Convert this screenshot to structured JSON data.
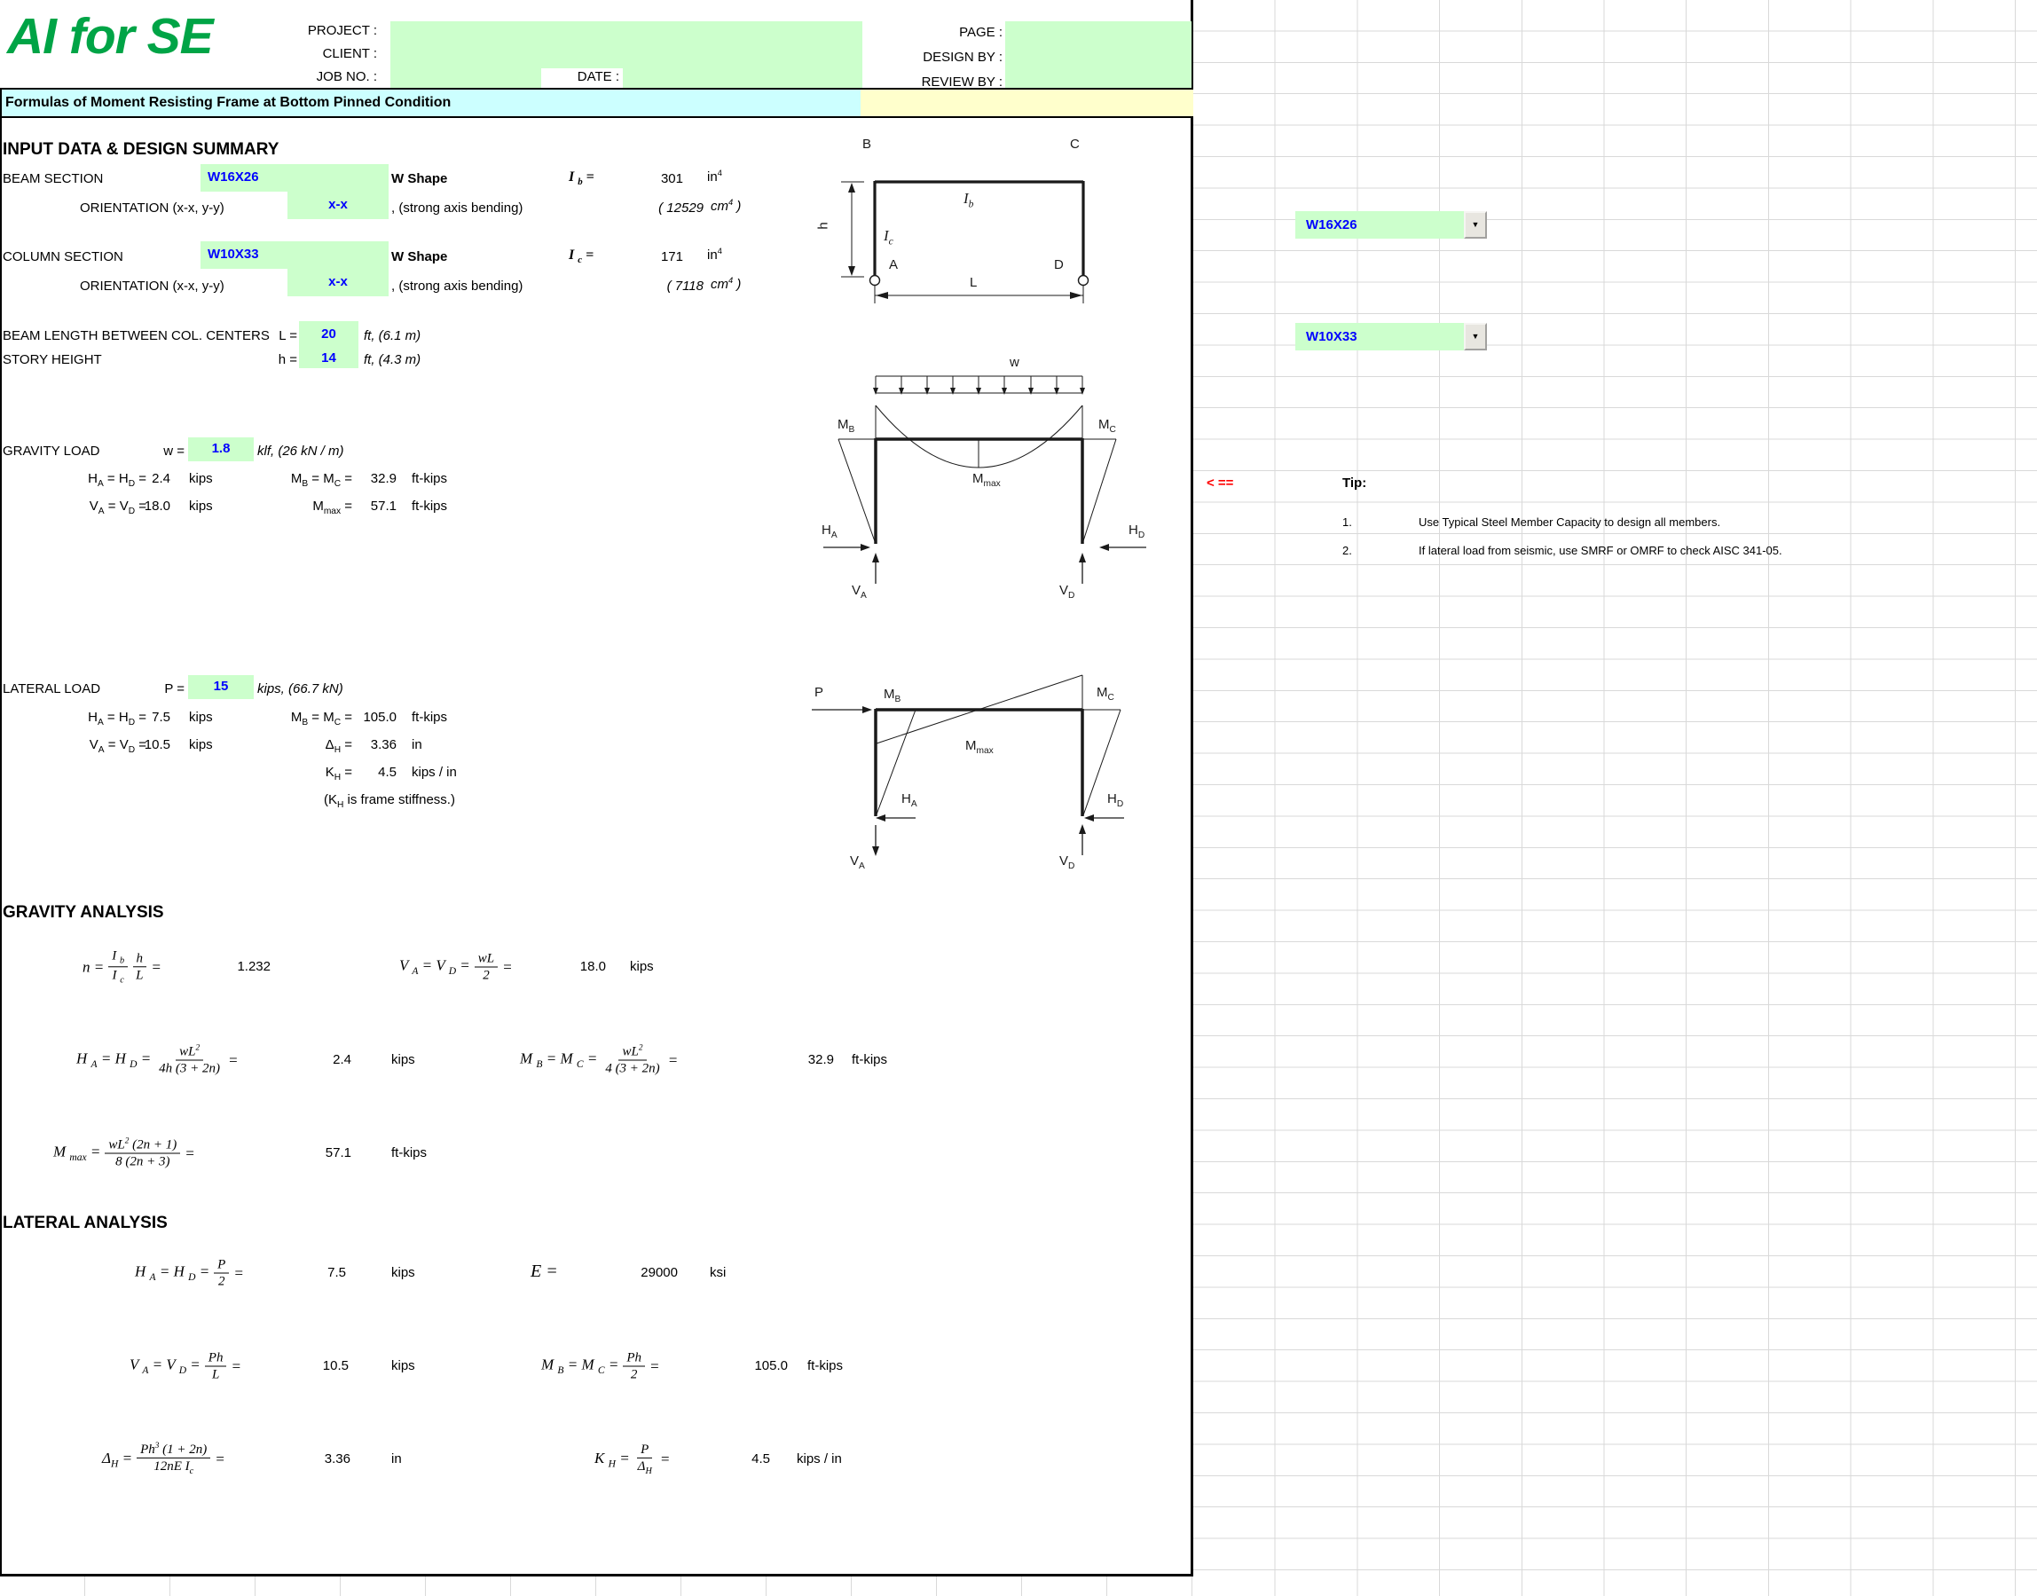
{
  "colors": {
    "brand_green": "#00A446",
    "cell_green": "#CCFFCC",
    "title_cyan": "#CCFFFF",
    "title_yellow": "#FFFFCC",
    "input_blue": "#0000FF",
    "pointer_red": "#FF0000"
  },
  "header": {
    "logo": "AI for SE",
    "left_labels": [
      "PROJECT :",
      "CLIENT :",
      "JOB NO. :"
    ],
    "date_label": "DATE :",
    "right_labels": [
      "PAGE :",
      "DESIGN BY :",
      "REVIEW BY :"
    ],
    "title": "Formulas of Moment Resisting Frame at Bottom Pinned Condition"
  },
  "input": {
    "heading": "INPUT DATA & DESIGN SUMMARY",
    "beam_label": "BEAM SECTION",
    "beam_value": "W16X26",
    "shape": "W Shape",
    "Ib_label": [
      [
        "t",
        "I "
      ],
      [
        "s",
        "b"
      ],
      [
        "t",
        "  ="
      ]
    ],
    "Ib_value": "301",
    "in4": [
      [
        "t",
        "in"
      ],
      [
        "p",
        "4"
      ]
    ],
    "orientation_label": "ORIENTATION (x-x, y-y)",
    "orientation_value": "x-x",
    "orientation_note": ", (strong axis bending)",
    "beam_metric": "( 12529",
    "cm4": [
      [
        "t",
        "cm"
      ],
      [
        "p",
        "4"
      ],
      [
        "t",
        " )"
      ]
    ],
    "column_label": "COLUMN SECTION",
    "column_value": "W10X33",
    "Ic_label": [
      [
        "t",
        "I "
      ],
      [
        "s",
        "c"
      ],
      [
        "t",
        "  ="
      ]
    ],
    "Ic_value": "171",
    "column_metric": "( 7118",
    "length_label": "BEAM LENGTH BETWEEN COL. CENTERS",
    "length_sym": "L =",
    "length_value": "20",
    "length_unit": "ft, (6.1 m)",
    "height_label": "STORY HEIGHT",
    "height_sym": "h =",
    "height_value": "14",
    "height_unit": "ft, (4.3 m)"
  },
  "gravity": {
    "label": "GRAVITY LOAD",
    "sym": "w =",
    "value": "1.8",
    "unit": "klf, (26 kN / m)",
    "h_label": [
      [
        "t",
        "H"
      ],
      [
        "s",
        "A"
      ],
      [
        "t",
        " = H"
      ],
      [
        "s",
        "D"
      ],
      [
        "t",
        " ="
      ]
    ],
    "h_value": "2.4",
    "h_unit": "kips",
    "mb_label": [
      [
        "t",
        "M"
      ],
      [
        "s",
        "B"
      ],
      [
        "t",
        " = M"
      ],
      [
        "s",
        "C"
      ],
      [
        "t",
        " ="
      ]
    ],
    "mb_value": "32.9",
    "mb_unit": "ft-kips",
    "v_label": [
      [
        "t",
        "V"
      ],
      [
        "s",
        "A"
      ],
      [
        "t",
        " = V"
      ],
      [
        "s",
        "D"
      ],
      [
        "t",
        " ="
      ]
    ],
    "v_value": "18.0",
    "v_unit": "kips",
    "mmax_label": [
      [
        "t",
        "M"
      ],
      [
        "s",
        "max"
      ],
      [
        "t",
        " ="
      ]
    ],
    "mmax_value": "57.1",
    "mmax_unit": "ft-kips"
  },
  "lateral": {
    "label": "LATERAL LOAD",
    "sym": "P =",
    "value": "15",
    "unit": "kips, (66.7 kN)",
    "h_label": [
      [
        "t",
        "H"
      ],
      [
        "s",
        "A"
      ],
      [
        "t",
        " = H"
      ],
      [
        "s",
        "D"
      ],
      [
        "t",
        " ="
      ]
    ],
    "h_value": "7.5",
    "h_unit": "kips",
    "mb_label": [
      [
        "t",
        "M"
      ],
      [
        "s",
        "B"
      ],
      [
        "t",
        " = M"
      ],
      [
        "s",
        "C"
      ],
      [
        "t",
        " ="
      ]
    ],
    "mb_value": "105.0",
    "mb_unit": "ft-kips",
    "v_label": [
      [
        "t",
        "V"
      ],
      [
        "s",
        "A"
      ],
      [
        "t",
        " = V"
      ],
      [
        "s",
        "D"
      ],
      [
        "t",
        " ="
      ]
    ],
    "v_value": "10.5",
    "v_unit": "kips",
    "dh_label": [
      [
        "t",
        "Δ"
      ],
      [
        "s",
        "H"
      ],
      [
        "t",
        " ="
      ]
    ],
    "dh_value": "3.36",
    "dh_unit": "in",
    "kh_label": [
      [
        "t",
        "K"
      ],
      [
        "s",
        "H"
      ],
      [
        "t",
        " ="
      ]
    ],
    "kh_value": "4.5",
    "kh_unit": "kips / in",
    "note": [
      [
        "t",
        "(K"
      ],
      [
        "s",
        "H"
      ],
      [
        "t",
        " is frame stiffness.)"
      ]
    ]
  },
  "ganalysis": {
    "heading": "GRAVITY ANALYSIS",
    "f_n": {
      "pre": [
        [
          "t",
          "n ="
        ]
      ],
      "f1n": [
        [
          "t",
          "I "
        ],
        [
          "s",
          "b"
        ]
      ],
      "f1d": [
        [
          "t",
          "I "
        ],
        [
          "s",
          "c"
        ]
      ],
      "f2n": [
        [
          "t",
          "h"
        ]
      ],
      "f2d": [
        [
          "t",
          "L"
        ]
      ],
      "post": "=",
      "value": "1.232"
    },
    "f_v": {
      "pre": [
        [
          "t",
          "V "
        ],
        [
          "s",
          "A"
        ],
        [
          "t",
          " = V "
        ],
        [
          "s",
          "D"
        ],
        [
          "t",
          " ="
        ]
      ],
      "num": [
        [
          "t",
          "wL"
        ]
      ],
      "den": [
        [
          "t",
          "2"
        ]
      ],
      "post": "=",
      "value": "18.0",
      "unit": "kips"
    },
    "f_h": {
      "pre": [
        [
          "t",
          "H "
        ],
        [
          "s",
          "A"
        ],
        [
          "t",
          " = H "
        ],
        [
          "s",
          "D"
        ],
        [
          "t",
          " ="
        ]
      ],
      "num": [
        [
          "t",
          "wL"
        ],
        [
          "p",
          "2"
        ]
      ],
      "den": [
        [
          "t",
          "4h (3 + 2n)"
        ]
      ],
      "post": "=",
      "value": "2.4",
      "unit": "kips"
    },
    "f_mb": {
      "pre": [
        [
          "t",
          "M "
        ],
        [
          "s",
          "B"
        ],
        [
          "t",
          " = M "
        ],
        [
          "s",
          "C"
        ],
        [
          "t",
          " ="
        ]
      ],
      "num": [
        [
          "t",
          "wL"
        ],
        [
          "p",
          "2"
        ]
      ],
      "den": [
        [
          "t",
          "4 (3 + 2n)"
        ]
      ],
      "post": "=",
      "value": "32.9",
      "unit": "ft-kips"
    },
    "f_mmax": {
      "pre": [
        [
          "t",
          "M "
        ],
        [
          "s",
          "max"
        ],
        [
          "t",
          " ="
        ]
      ],
      "num": [
        [
          "t",
          "wL"
        ],
        [
          "p",
          "2"
        ],
        [
          "t",
          " (2n + 1)"
        ]
      ],
      "den": [
        [
          "t",
          "8 (2n + 3)"
        ]
      ],
      "post": "=",
      "value": "57.1",
      "unit": "ft-kips"
    }
  },
  "lanalysis": {
    "heading": "LATERAL ANALYSIS",
    "f_h": {
      "pre": [
        [
          "t",
          "H "
        ],
        [
          "s",
          "A"
        ],
        [
          "t",
          " = H "
        ],
        [
          "s",
          "D"
        ],
        [
          "t",
          " ="
        ]
      ],
      "num": [
        [
          "t",
          "P"
        ]
      ],
      "den": [
        [
          "t",
          "2"
        ]
      ],
      "post": "=",
      "value": "7.5",
      "unit": "kips"
    },
    "e_label": "E =",
    "e_value": "29000",
    "e_unit": "ksi",
    "f_v": {
      "pre": [
        [
          "t",
          "V "
        ],
        [
          "s",
          "A"
        ],
        [
          "t",
          " = V "
        ],
        [
          "s",
          "D"
        ],
        [
          "t",
          " ="
        ]
      ],
      "num": [
        [
          "t",
          "Ph"
        ]
      ],
      "den": [
        [
          "t",
          "L"
        ]
      ],
      "post": "=",
      "value": "10.5",
      "unit": "kips"
    },
    "f_mb": {
      "pre": [
        [
          "t",
          "M "
        ],
        [
          "s",
          "B"
        ],
        [
          "t",
          " = M "
        ],
        [
          "s",
          "C"
        ],
        [
          "t",
          " ="
        ]
      ],
      "num": [
        [
          "t",
          "Ph"
        ]
      ],
      "den": [
        [
          "t",
          "2"
        ]
      ],
      "post": "=",
      "value": "105.0",
      "unit": "ft-kips"
    },
    "f_dh": {
      "pre": [
        [
          "t",
          "Δ"
        ],
        [
          "s",
          "H"
        ],
        [
          "t",
          " ="
        ]
      ],
      "num": [
        [
          "t",
          "Ph"
        ],
        [
          "p",
          "3"
        ],
        [
          "t",
          " (1 + 2n)"
        ]
      ],
      "den": [
        [
          "t",
          "12nE I"
        ],
        [
          "s",
          "c"
        ]
      ],
      "post": "=",
      "value": "3.36",
      "unit": "in"
    },
    "f_kh": {
      "pre": [
        [
          "t",
          "K "
        ],
        [
          "s",
          "H"
        ],
        [
          "t",
          " ="
        ]
      ],
      "num": [
        [
          "t",
          "P"
        ]
      ],
      "den": [
        [
          "t",
          "Δ"
        ],
        [
          "s",
          "H"
        ]
      ],
      "post": "=",
      "value": "4.5",
      "unit": "kips / in"
    }
  },
  "diagram_frame": {
    "b": "B",
    "c": "C",
    "a": "A",
    "d": "D",
    "ib": [
      [
        "t",
        "I"
      ],
      [
        "s",
        "b"
      ]
    ],
    "ic": [
      [
        "t",
        "I"
      ],
      [
        "s",
        "c"
      ]
    ],
    "h": "h",
    "l": "L"
  },
  "diagram_gravity": {
    "w": "w",
    "mb": [
      [
        "t",
        "M"
      ],
      [
        "s",
        "B"
      ]
    ],
    "mc": [
      [
        "t",
        "M"
      ],
      [
        "s",
        "C"
      ]
    ],
    "mmax": [
      [
        "t",
        "M"
      ],
      [
        "s",
        "max"
      ]
    ],
    "ha": [
      [
        "t",
        "H"
      ],
      [
        "s",
        "A"
      ]
    ],
    "hd": [
      [
        "t",
        "H"
      ],
      [
        "s",
        "D"
      ]
    ],
    "va": [
      [
        "t",
        "V"
      ],
      [
        "s",
        "A"
      ]
    ],
    "vd": [
      [
        "t",
        "V"
      ],
      [
        "s",
        "D"
      ]
    ]
  },
  "diagram_lateral": {
    "p": "P",
    "mb": [
      [
        "t",
        "M"
      ],
      [
        "s",
        "B"
      ]
    ],
    "mc": [
      [
        "t",
        "M"
      ],
      [
        "s",
        "C"
      ]
    ],
    "mmax": [
      [
        "t",
        "M"
      ],
      [
        "s",
        "max"
      ]
    ],
    "ha": [
      [
        "t",
        "H"
      ],
      [
        "s",
        "A"
      ]
    ],
    "hd": [
      [
        "t",
        "H"
      ],
      [
        "s",
        "D"
      ]
    ],
    "va": [
      [
        "t",
        "V"
      ],
      [
        "s",
        "A"
      ]
    ],
    "vd": [
      [
        "t",
        "V"
      ],
      [
        "s",
        "D"
      ]
    ]
  },
  "side_panel": {
    "beam_dropdown": "W16X26",
    "column_dropdown": "W10X33",
    "dropdown_arrow": "▼",
    "pointer": "< ==",
    "tip_label": "Tip:",
    "tips": [
      {
        "n": "1.",
        "text": "Use Typical Steel Member Capacity to design all members."
      },
      {
        "n": "2.",
        "text": "If lateral load from seismic, use SMRF or OMRF to check AISC 341-05."
      }
    ]
  }
}
